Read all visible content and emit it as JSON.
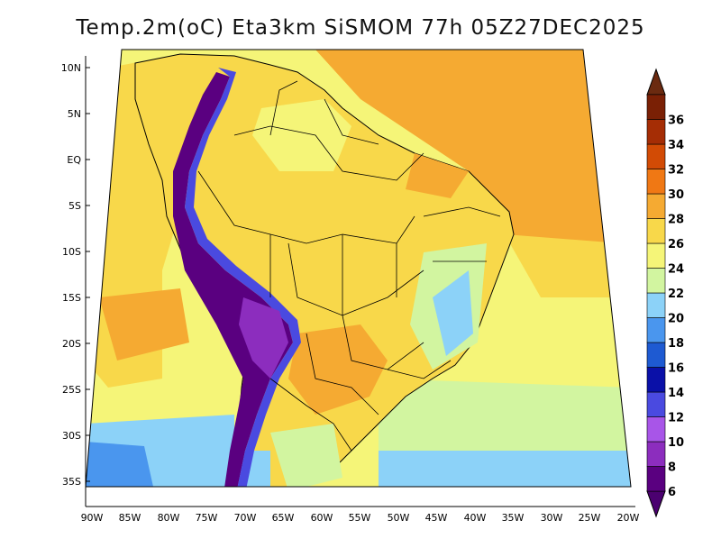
{
  "title": "Temp.2m(oC) Eta3km SiSMOM 77h 05Z27DEC2025",
  "lat_ticks": [
    "10N",
    "5N",
    "EQ",
    "5S",
    "10S",
    "15S",
    "20S",
    "25S",
    "30S",
    "35S"
  ],
  "lon_ticks": [
    "90W",
    "85W",
    "80W",
    "75W",
    "70W",
    "65W",
    "60W",
    "55W",
    "50W",
    "45W",
    "40W",
    "35W",
    "30W",
    "25W",
    "20W"
  ],
  "colorbar": {
    "labels": [
      "6",
      "8",
      "10",
      "12",
      "14",
      "16",
      "18",
      "20",
      "22",
      "24",
      "26",
      "28",
      "30",
      "32",
      "34",
      "36"
    ],
    "colors": [
      "#5a0080",
      "#8c2dbe",
      "#a855e8",
      "#4a4ae0",
      "#0a10a8",
      "#1e5ad2",
      "#4a96ee",
      "#8cd2f8",
      "#d2f5a0",
      "#f5f578",
      "#f8d84a",
      "#f5aa32",
      "#f07814",
      "#d24b05",
      "#a52d05",
      "#7a2005"
    ],
    "under_color": "#4b0070",
    "over_color": "#6b2a10"
  },
  "colors": {
    "ocean_warm": "#f5aa32",
    "ocean_mild": "#f8d84a",
    "ocean_cool": "#f5f578",
    "land_main": "#f8d84a",
    "andes_cold": "#5a0080"
  }
}
